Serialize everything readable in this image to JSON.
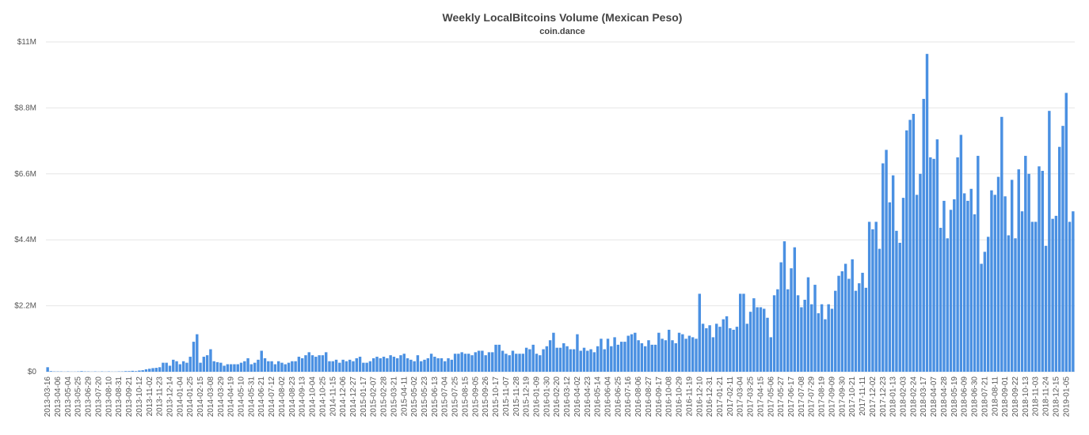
{
  "chart_data": {
    "type": "bar",
    "title": "Weekly LocalBitcoins Volume (Mexican Peso)",
    "subtitle": "coin.dance",
    "color": "#4a90e2",
    "grid": true,
    "ylim": [
      0,
      11000000
    ],
    "yticks": [
      {
        "value": 0,
        "label": "$0"
      },
      {
        "value": 2200000,
        "label": "$2.2M"
      },
      {
        "value": 4400000,
        "label": "$4.4M"
      },
      {
        "value": 6600000,
        "label": "$6.6M"
      },
      {
        "value": 8800000,
        "label": "$8.8M"
      },
      {
        "value": 11000000,
        "label": "$11M"
      }
    ],
    "categories": [
      "2013-03-16",
      null,
      null,
      "2013-04-06",
      null,
      null,
      "2013-05-04",
      null,
      null,
      "2013-05-25",
      null,
      null,
      "2013-06-29",
      null,
      null,
      "2013-07-20",
      null,
      null,
      "2013-08-10",
      null,
      null,
      "2013-08-31",
      null,
      null,
      "2013-09-21",
      null,
      null,
      "2013-10-12",
      null,
      null,
      "2013-11-02",
      null,
      null,
      "2013-11-23",
      null,
      null,
      "2013-12-14",
      null,
      null,
      "2014-01-04",
      null,
      null,
      "2014-01-25",
      null,
      null,
      "2014-02-15",
      null,
      null,
      "2014-03-08",
      null,
      null,
      "2014-03-29",
      null,
      null,
      "2014-04-19",
      null,
      null,
      "2014-05-10",
      null,
      null,
      "2014-05-31",
      null,
      null,
      "2014-06-21",
      null,
      null,
      "2014-07-12",
      null,
      null,
      "2014-08-02",
      null,
      null,
      "2014-08-23",
      null,
      null,
      "2014-09-13",
      null,
      null,
      "2014-10-04",
      null,
      null,
      "2014-10-25",
      null,
      null,
      "2014-11-15",
      null,
      null,
      "2014-12-06",
      null,
      null,
      "2014-12-27",
      null,
      null,
      "2015-01-17",
      null,
      null,
      "2015-02-07",
      null,
      null,
      "2015-02-28",
      null,
      null,
      "2015-03-21",
      null,
      null,
      "2015-04-11",
      null,
      null,
      "2015-05-02",
      null,
      null,
      "2015-05-23",
      null,
      null,
      "2015-06-13",
      null,
      null,
      "2015-07-04",
      null,
      null,
      "2015-07-25",
      null,
      null,
      "2015-08-15",
      null,
      null,
      "2015-09-05",
      null,
      null,
      "2015-09-26",
      null,
      null,
      "2015-10-17",
      null,
      null,
      "2015-11-07",
      null,
      null,
      "2015-11-28",
      null,
      null,
      "2015-12-19",
      null,
      null,
      "2016-01-09",
      null,
      null,
      "2016-01-30",
      null,
      null,
      "2016-02-20",
      null,
      null,
      "2016-03-12",
      null,
      null,
      "2016-04-02",
      null,
      null,
      "2016-04-23",
      null,
      null,
      "2016-05-14",
      null,
      null,
      "2016-06-04",
      null,
      null,
      "2016-06-25",
      null,
      null,
      "2016-07-16",
      null,
      null,
      "2016-08-06",
      null,
      null,
      "2016-08-27",
      null,
      null,
      "2016-09-17",
      null,
      null,
      "2016-10-08",
      null,
      null,
      "2016-10-29",
      null,
      null,
      "2016-11-19",
      null,
      null,
      "2016-12-10",
      null,
      null,
      "2016-12-31",
      null,
      null,
      "2017-01-21",
      null,
      null,
      "2017-02-11",
      null,
      null,
      "2017-03-04",
      null,
      null,
      "2017-03-25",
      null,
      null,
      "2017-04-15",
      null,
      null,
      "2017-05-06",
      null,
      null,
      "2017-05-27",
      null,
      null,
      "2017-06-17",
      null,
      null,
      "2017-07-08",
      null,
      null,
      "2017-07-29",
      null,
      null,
      "2017-08-19",
      null,
      null,
      "2017-09-09",
      null,
      null,
      "2017-09-30",
      null,
      null,
      "2017-10-21",
      null,
      null,
      "2017-11-11",
      null,
      null,
      "2017-12-02",
      null,
      null,
      "2017-12-23",
      null,
      null,
      "2018-01-13",
      null,
      null,
      "2018-02-03",
      null,
      null,
      "2018-02-24",
      null,
      null,
      "2018-03-17",
      null,
      null,
      "2018-04-07",
      null,
      null,
      "2018-04-28",
      null,
      null,
      "2018-05-19",
      null,
      null,
      "2018-06-09",
      null,
      null,
      "2018-06-30",
      null,
      null,
      "2018-07-21",
      null,
      null,
      "2018-08-11",
      null,
      null,
      "2018-09-01",
      null,
      null,
      "2018-09-22",
      null,
      null,
      "2018-10-13",
      null,
      null,
      "2018-11-03",
      null,
      null,
      "2018-11-24",
      null,
      null,
      "2018-12-15",
      null,
      null,
      "2019-01-05",
      null,
      null
    ],
    "values": [
      150000,
      20000,
      10000,
      10000,
      10000,
      5000,
      10000,
      5000,
      5000,
      10000,
      20000,
      10000,
      10000,
      5000,
      10000,
      5000,
      10000,
      5000,
      10000,
      5000,
      5000,
      10000,
      10000,
      20000,
      20000,
      30000,
      20000,
      40000,
      50000,
      80000,
      100000,
      120000,
      130000,
      150000,
      300000,
      300000,
      200000,
      400000,
      350000,
      250000,
      350000,
      300000,
      500000,
      1000000,
      1250000,
      300000,
      500000,
      550000,
      750000,
      350000,
      320000,
      300000,
      200000,
      250000,
      250000,
      250000,
      250000,
      300000,
      350000,
      450000,
      250000,
      300000,
      400000,
      700000,
      450000,
      350000,
      350000,
      250000,
      350000,
      300000,
      250000,
      300000,
      350000,
      350000,
      500000,
      450000,
      550000,
      650000,
      550000,
      500000,
      550000,
      550000,
      650000,
      350000,
      350000,
      400000,
      300000,
      400000,
      350000,
      400000,
      350000,
      450000,
      500000,
      300000,
      300000,
      350000,
      450000,
      500000,
      450000,
      500000,
      450000,
      550000,
      500000,
      450000,
      550000,
      600000,
      450000,
      400000,
      350000,
      550000,
      350000,
      400000,
      450000,
      600000,
      500000,
      450000,
      450000,
      350000,
      450000,
      400000,
      600000,
      600000,
      650000,
      600000,
      600000,
      550000,
      650000,
      700000,
      700000,
      550000,
      650000,
      650000,
      900000,
      900000,
      700000,
      600000,
      550000,
      700000,
      600000,
      600000,
      600000,
      800000,
      750000,
      900000,
      600000,
      550000,
      750000,
      850000,
      1050000,
      1300000,
      800000,
      800000,
      950000,
      850000,
      750000,
      750000,
      1250000,
      700000,
      800000,
      700000,
      750000,
      650000,
      850000,
      1100000,
      750000,
      1100000,
      850000,
      1150000,
      900000,
      1000000,
      1000000,
      1200000,
      1250000,
      1300000,
      1050000,
      950000,
      850000,
      1050000,
      900000,
      900000,
      1300000,
      1100000,
      1050000,
      1400000,
      1050000,
      950000,
      1300000,
      1250000,
      1100000,
      1200000,
      1150000,
      1100000,
      2600000,
      1600000,
      1450000,
      1550000,
      1150000,
      1600000,
      1500000,
      1750000,
      1850000,
      1450000,
      1400000,
      1500000,
      2600000,
      2600000,
      1600000,
      2000000,
      2450000,
      2150000,
      2150000,
      2100000,
      1800000,
      1150000,
      2550000,
      2750000,
      3650000,
      4350000,
      2750000,
      3450000,
      4150000,
      2550000,
      2150000,
      2400000,
      3150000,
      2250000,
      2900000,
      1950000,
      2250000,
      1750000,
      2250000,
      2100000,
      2700000,
      3200000,
      3350000,
      3600000,
      3100000,
      3750000,
      2700000,
      2950000,
      3300000,
      2800000,
      5000000,
      4750000,
      5000000,
      4100000,
      6950000,
      7400000,
      5650000,
      6550000,
      4700000,
      4300000,
      5800000,
      8050000,
      8400000,
      8600000,
      5900000,
      6600000,
      9100000,
      10600000,
      7150000,
      7100000,
      7750000,
      4800000,
      5700000,
      4450000,
      5400000,
      5750000,
      7150000,
      7900000,
      5950000,
      5700000,
      6100000,
      5250000,
      7200000,
      3600000,
      4000000,
      4500000,
      6050000,
      5900000,
      6500000,
      8500000,
      5850000,
      4550000,
      6400000,
      4450000,
      6750000,
      5350000,
      7200000,
      6600000,
      5000000,
      5000000,
      6850000,
      6700000,
      4200000,
      8700000,
      5100000,
      5200000,
      7500000,
      8200000,
      9300000,
      5000000,
      5350000
    ]
  }
}
